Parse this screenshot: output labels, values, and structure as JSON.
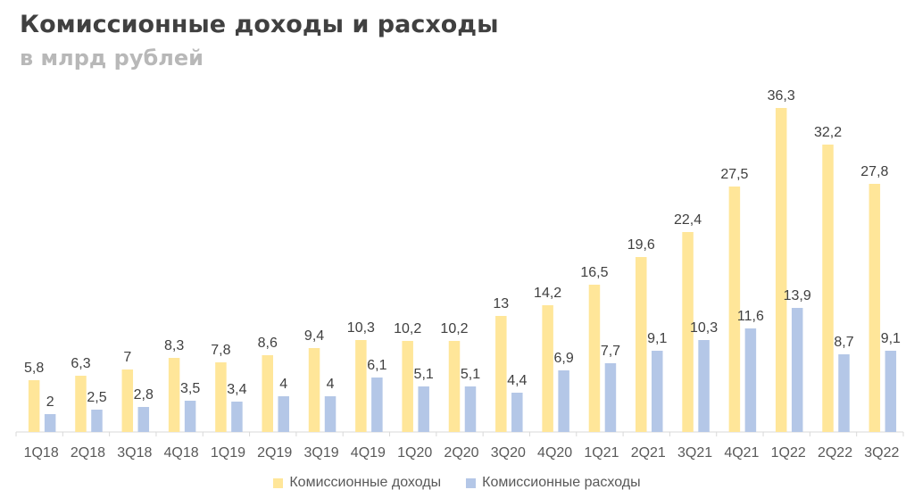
{
  "title": "Комиссионные доходы и расходы",
  "subtitle": "в млрд рублей",
  "chart_data": {
    "type": "bar",
    "categories": [
      "1Q18",
      "2Q18",
      "3Q18",
      "4Q18",
      "1Q19",
      "2Q19",
      "3Q19",
      "4Q19",
      "1Q20",
      "2Q20",
      "3Q20",
      "4Q20",
      "1Q21",
      "2Q21",
      "3Q21",
      "4Q21",
      "1Q22",
      "2Q22",
      "3Q22"
    ],
    "series": [
      {
        "name": "Комиссионные доходы",
        "color": "#FFE699",
        "values": [
          5.8,
          6.3,
          7,
          8.3,
          7.8,
          8.6,
          9.4,
          10.3,
          10.2,
          10.2,
          13,
          14.2,
          16.5,
          19.6,
          22.4,
          27.5,
          36.3,
          32.2,
          27.8
        ],
        "labels": [
          "5,8",
          "6,3",
          "7",
          "8,3",
          "7,8",
          "8,6",
          "9,4",
          "10,3",
          "10,2",
          "10,2",
          "13",
          "14,2",
          "16,5",
          "19,6",
          "22,4",
          "27,5",
          "36,3",
          "32,2",
          "27,8"
        ]
      },
      {
        "name": "Комиссионные расходы",
        "color": "#B4C7E7",
        "values": [
          2,
          2.5,
          2.8,
          3.5,
          3.4,
          4,
          4,
          6.1,
          5.1,
          5.1,
          4.4,
          6.9,
          7.7,
          9.1,
          10.3,
          11.6,
          13.9,
          8.7,
          9.1
        ],
        "labels": [
          "2",
          "2,5",
          "2,8",
          "3,5",
          "3,4",
          "4",
          "4",
          "6,1",
          "5,1",
          "5,1",
          "4,4",
          "6,9",
          "7,7",
          "9,1",
          "10,3",
          "11,6",
          "13,9",
          "8,7",
          "9,1"
        ]
      }
    ],
    "ylim": [
      0,
      36.3
    ],
    "grid": false,
    "legend": "bottom"
  }
}
